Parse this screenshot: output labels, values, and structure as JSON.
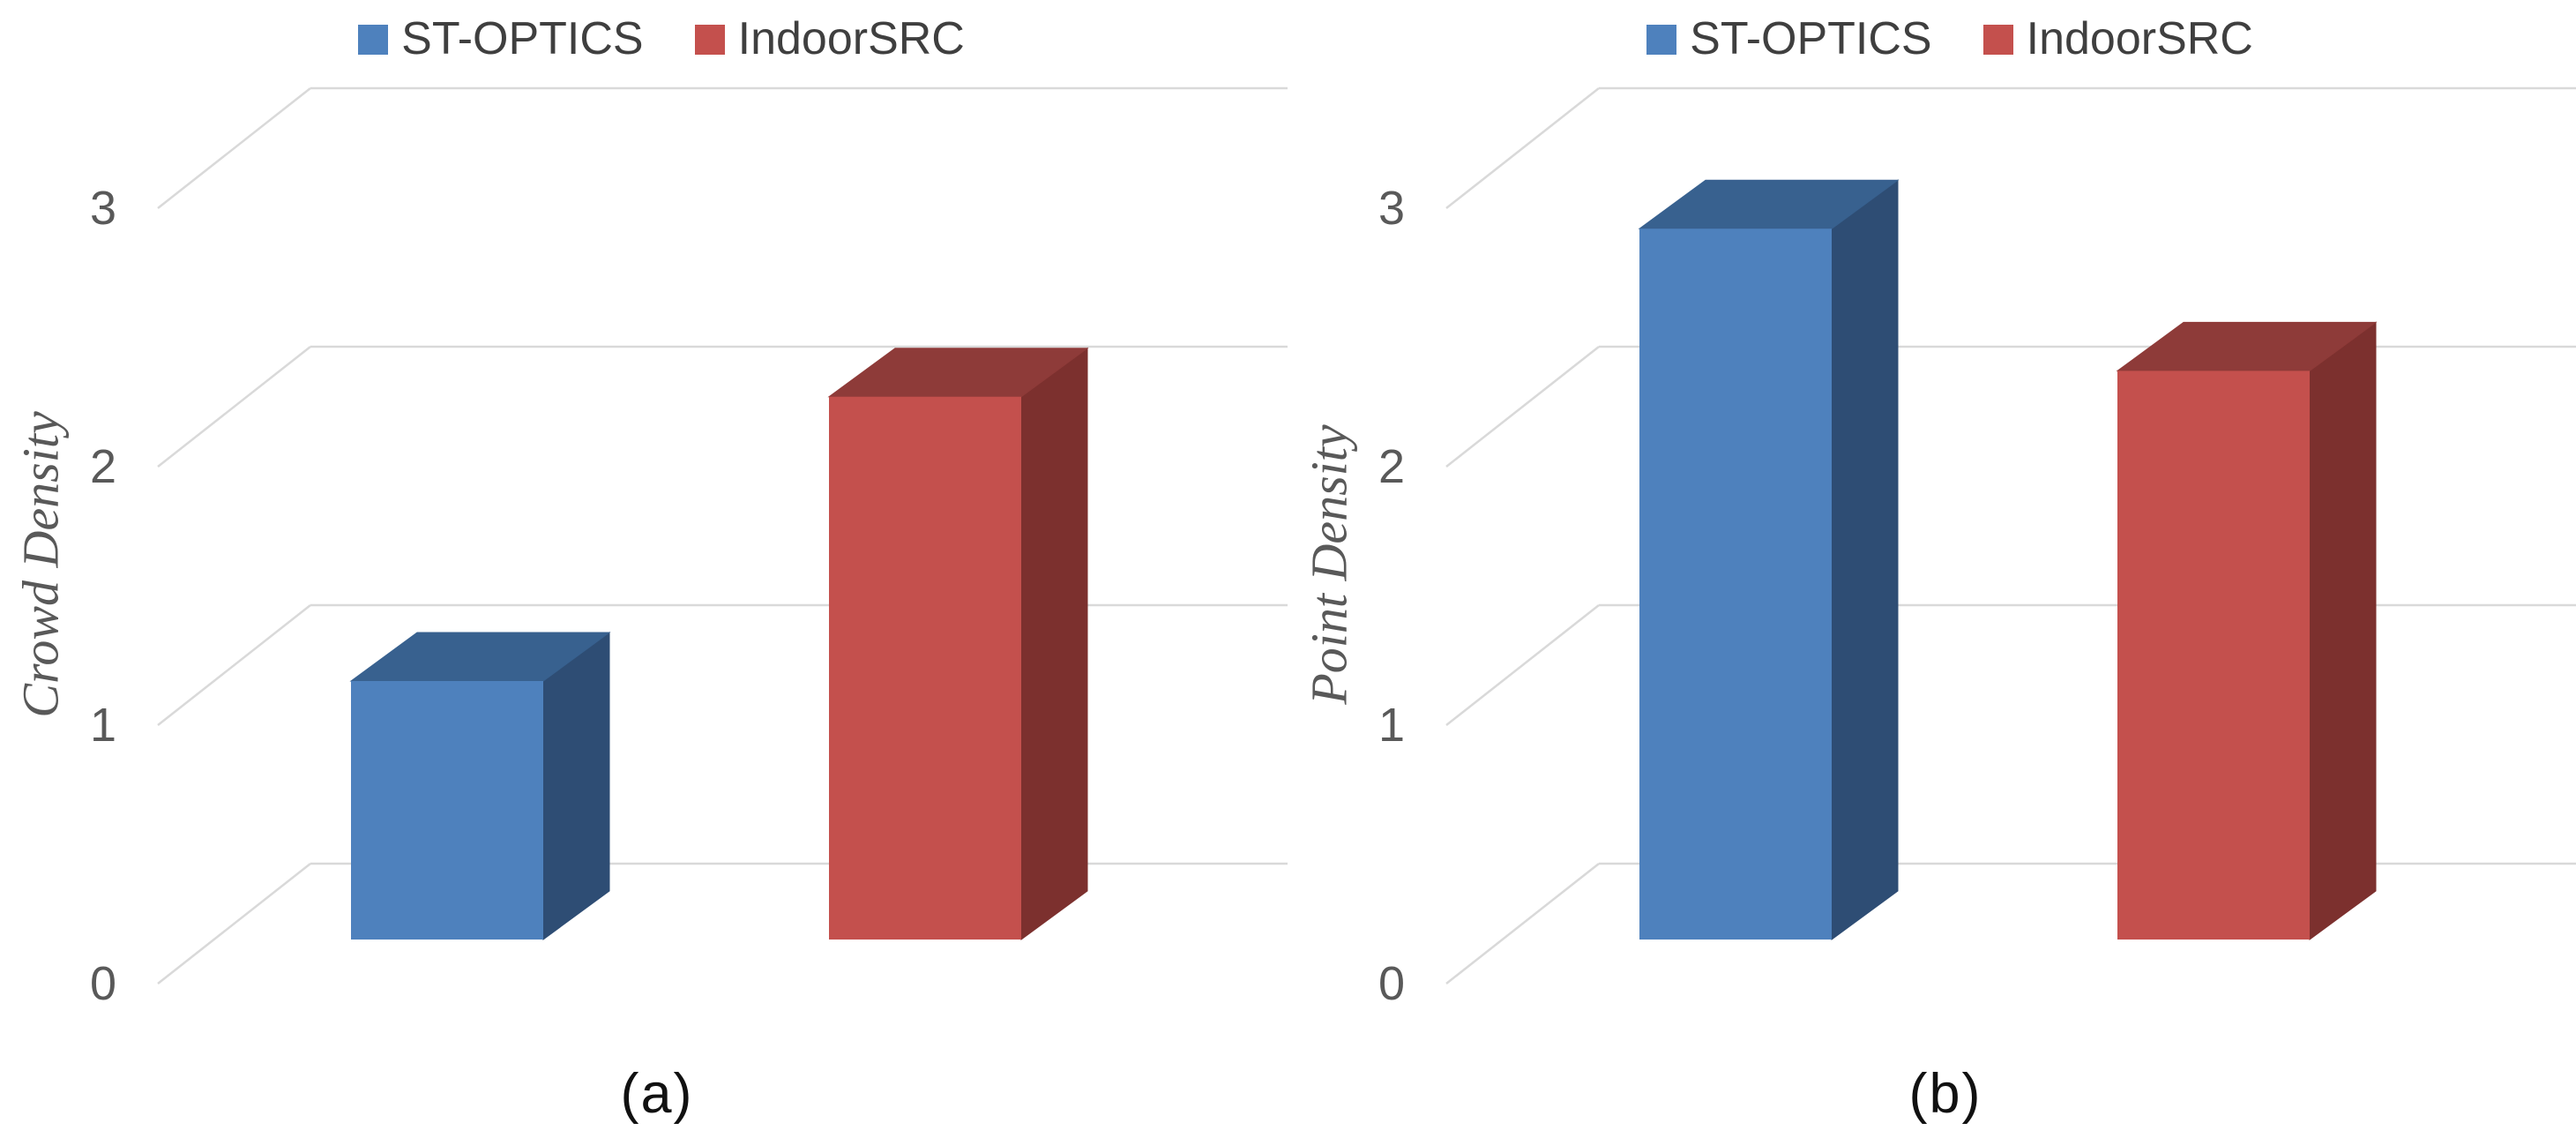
{
  "background": "#FFFFFF",
  "grid_color": "#D9D9D9",
  "text_colors": {
    "axis_ticks": "#595959",
    "axis_title": "#595959",
    "legend": "#3F3F3F",
    "caption": "#111111"
  },
  "legend": {
    "position": "top-center",
    "items": [
      {
        "label": "ST-OPTICS",
        "color": "#4E81BD"
      },
      {
        "label": "IndoorSRC",
        "color": "#C4504D"
      }
    ]
  },
  "chart_data": [
    {
      "type": "bar",
      "style": "3d-column",
      "title": "",
      "caption": "(a)",
      "xlabel": "",
      "ylabel": "Crowd Density",
      "categories": [
        ""
      ],
      "yticks": [
        0,
        1,
        2,
        3
      ],
      "ylim": [
        0,
        3
      ],
      "grid": true,
      "legend_position": "top",
      "series": [
        {
          "name": "ST-OPTICS",
          "value": 1.0,
          "faces": {
            "front": "#4E81BD",
            "top": "#38618F",
            "side": "#2E4D74"
          }
        },
        {
          "name": "IndoorSRC",
          "value": 2.1,
          "faces": {
            "front": "#C4504D",
            "top": "#8E3B39",
            "side": "#7C302E"
          }
        }
      ]
    },
    {
      "type": "bar",
      "style": "3d-column",
      "title": "",
      "caption": "(b)",
      "xlabel": "",
      "ylabel": "Point Density",
      "categories": [
        ""
      ],
      "yticks": [
        0,
        1,
        2,
        3
      ],
      "ylim": [
        0,
        3
      ],
      "grid": true,
      "legend_position": "top",
      "series": [
        {
          "name": "ST-OPTICS",
          "value": 2.75,
          "faces": {
            "front": "#4E81BD",
            "top": "#38618F",
            "side": "#2E4D74"
          }
        },
        {
          "name": "IndoorSRC",
          "value": 2.2,
          "faces": {
            "front": "#C4504D",
            "top": "#8E3B39",
            "side": "#7C302E"
          }
        }
      ]
    }
  ]
}
